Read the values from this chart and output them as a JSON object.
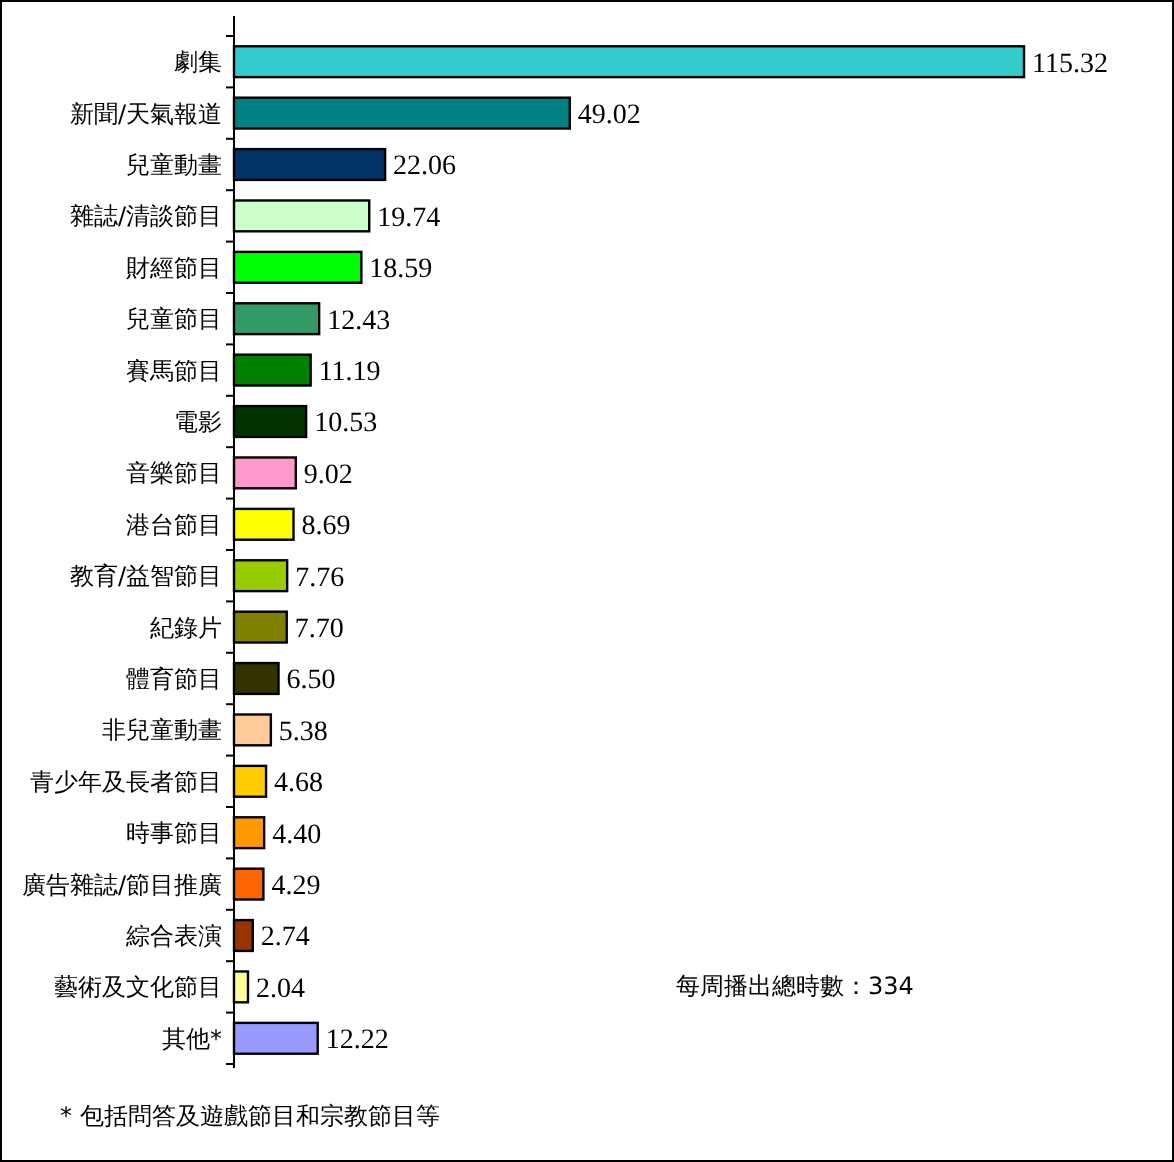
{
  "chart_data": {
    "type": "bar",
    "orientation": "horizontal",
    "categories": [
      "劇集",
      "新聞/天氣報道",
      "兒童動畫",
      "雜誌/清談節目",
      "財經節目",
      "兒童節目",
      "賽馬節目",
      "電影",
      "音樂節目",
      "港台節目",
      "教育/益智節目",
      "紀錄片",
      "體育節目",
      "非兒童動畫",
      "青少年及長者節目",
      "時事節目",
      "廣告雜誌/節目推廣",
      "綜合表演",
      "藝術及文化節目",
      "其他*"
    ],
    "values": [
      115.32,
      49.02,
      22.06,
      19.74,
      18.59,
      12.43,
      11.19,
      10.53,
      9.02,
      8.69,
      7.76,
      7.7,
      6.5,
      5.38,
      4.68,
      4.4,
      4.29,
      2.74,
      2.04,
      12.22
    ],
    "value_labels": [
      "115.32",
      "49.02",
      "22.06",
      "19.74",
      "18.59",
      "12.43",
      "11.19",
      "10.53",
      "9.02",
      "8.69",
      "7.76",
      "7.70",
      "6.50",
      "5.38",
      "4.68",
      "4.40",
      "4.29",
      "2.74",
      "2.04",
      "12.22"
    ],
    "colors": [
      "#33cccc",
      "#008080",
      "#003366",
      "#ccffcc",
      "#00ff00",
      "#339966",
      "#008000",
      "#003300",
      "#ff99cc",
      "#ffff00",
      "#99cc00",
      "#808000",
      "#333300",
      "#ffcc99",
      "#ffcc00",
      "#ff9900",
      "#ff6600",
      "#993300",
      "#ffff99",
      "#9999ff"
    ],
    "annotations": [
      "每周播出總時數：334",
      "* 包括問答及遊戲節目和宗教節目等"
    ]
  }
}
